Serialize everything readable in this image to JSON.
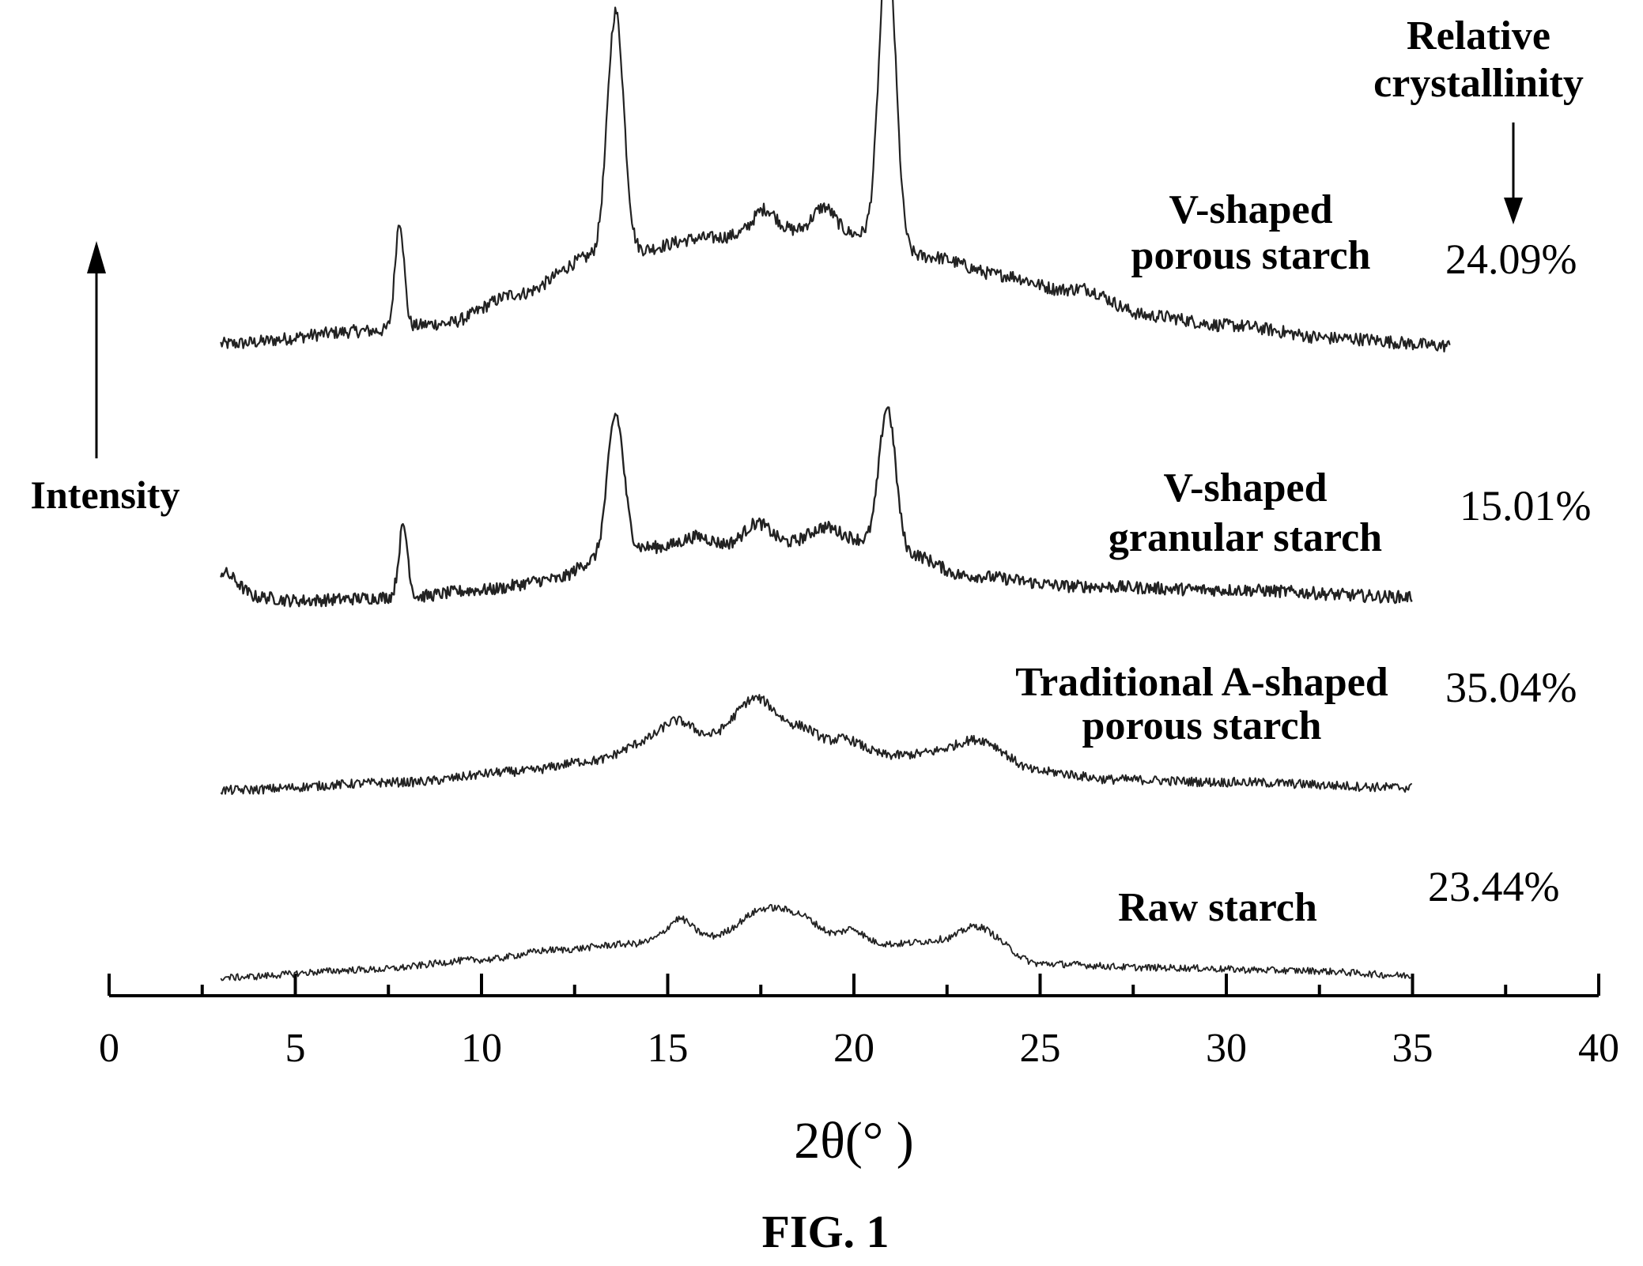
{
  "figure_label": "FIG. 1",
  "y_axis_label": "Intensity",
  "crystallinity_header": [
    "Relative",
    "crystallinity"
  ],
  "chart_data": {
    "type": "line",
    "title": "",
    "xlabel": "2θ(°  )",
    "ylabel": "Intensity",
    "xlim": [
      0,
      40
    ],
    "x_ticks": [
      0,
      5,
      10,
      15,
      20,
      25,
      30,
      35,
      40
    ],
    "x_tick_labels": [
      "0",
      "5",
      "10",
      "15",
      "20",
      "25",
      "30",
      "35",
      "40"
    ],
    "x_minor_ticks": [
      2.5,
      7.5,
      12.5,
      17.5,
      22.5,
      27.5,
      32.5,
      37.5
    ],
    "grid": false,
    "series": [
      {
        "name": "V-shaped porous starch",
        "label_lines": [
          "V-shaped",
          "porous starch"
        ],
        "relative_crystallinity": "24.09%",
        "x_range": [
          3,
          36
        ],
        "baseline": [
          [
            3,
            0.05
          ],
          [
            7,
            0.12
          ],
          [
            9,
            0.16
          ],
          [
            11,
            0.32
          ],
          [
            13,
            0.52
          ],
          [
            14,
            0.55
          ],
          [
            16,
            0.62
          ],
          [
            18,
            0.66
          ],
          [
            20,
            0.64
          ],
          [
            22,
            0.52
          ],
          [
            24,
            0.42
          ],
          [
            26,
            0.3
          ],
          [
            28,
            0.2
          ],
          [
            30,
            0.15
          ],
          [
            33,
            0.08
          ],
          [
            36,
            0.04
          ]
        ],
        "peaks": [
          [
            7.8,
            0.58,
            0.12
          ],
          [
            13.6,
            1.3,
            0.22
          ],
          [
            17.6,
            0.12,
            0.3
          ],
          [
            19.2,
            0.14,
            0.3
          ],
          [
            20.9,
            1.65,
            0.22
          ],
          [
            26.2,
            0.05,
            0.6
          ]
        ]
      },
      {
        "name": "V-shaped granular starch",
        "label_lines": [
          "V-shaped",
          "granular starch"
        ],
        "relative_crystallinity": "15.01%",
        "x_range": [
          3,
          35
        ],
        "baseline": [
          [
            3,
            0.16
          ],
          [
            4,
            0.02
          ],
          [
            5,
            0.0
          ],
          [
            8,
            0.02
          ],
          [
            10,
            0.06
          ],
          [
            12,
            0.12
          ],
          [
            13,
            0.22
          ],
          [
            14.5,
            0.3
          ],
          [
            16,
            0.3
          ],
          [
            18,
            0.32
          ],
          [
            20,
            0.34
          ],
          [
            21.5,
            0.26
          ],
          [
            23,
            0.14
          ],
          [
            26,
            0.08
          ],
          [
            30,
            0.06
          ],
          [
            35,
            0.02
          ]
        ],
        "peaks": [
          [
            7.9,
            0.4,
            0.12
          ],
          [
            13.6,
            0.8,
            0.22
          ],
          [
            15.8,
            0.06,
            0.4
          ],
          [
            17.4,
            0.12,
            0.35
          ],
          [
            19.2,
            0.08,
            0.4
          ],
          [
            20.9,
            0.8,
            0.22
          ]
        ]
      },
      {
        "name": "Traditional A-shaped porous starch",
        "label_lines": [
          "Traditional A-shaped",
          "porous starch"
        ],
        "relative_crystallinity": "35.04%",
        "x_range": [
          3,
          35
        ],
        "baseline": [
          [
            3,
            0.0
          ],
          [
            8,
            0.06
          ],
          [
            11,
            0.14
          ],
          [
            13,
            0.22
          ],
          [
            14.5,
            0.36
          ],
          [
            16,
            0.4
          ],
          [
            17.5,
            0.55
          ],
          [
            18.5,
            0.48
          ],
          [
            19.5,
            0.34
          ],
          [
            21,
            0.26
          ],
          [
            22.5,
            0.28
          ],
          [
            23.5,
            0.3
          ],
          [
            25,
            0.14
          ],
          [
            27,
            0.08
          ],
          [
            30,
            0.06
          ],
          [
            35,
            0.02
          ]
        ],
        "peaks": [
          [
            15.2,
            0.14,
            0.4
          ],
          [
            17.3,
            0.14,
            0.45
          ],
          [
            19.8,
            0.05,
            0.4
          ],
          [
            23.2,
            0.08,
            0.55
          ]
        ]
      },
      {
        "name": "Raw starch",
        "label_lines": [
          "Raw starch"
        ],
        "relative_crystallinity": "23.44%",
        "x_range": [
          3,
          35
        ],
        "baseline": [
          [
            3,
            0.0
          ],
          [
            7,
            0.08
          ],
          [
            10,
            0.18
          ],
          [
            12,
            0.28
          ],
          [
            14,
            0.34
          ],
          [
            15.5,
            0.46
          ],
          [
            16.2,
            0.42
          ],
          [
            17.5,
            0.62
          ],
          [
            18.5,
            0.58
          ],
          [
            19.5,
            0.44
          ],
          [
            21,
            0.34
          ],
          [
            22.5,
            0.38
          ],
          [
            23.3,
            0.46
          ],
          [
            25,
            0.14
          ],
          [
            28,
            0.1
          ],
          [
            32,
            0.07
          ],
          [
            35,
            0.02
          ]
        ],
        "peaks": [
          [
            15.3,
            0.14,
            0.28
          ],
          [
            18.0,
            0.1,
            0.6
          ],
          [
            20.0,
            0.08,
            0.22
          ],
          [
            23.2,
            0.06,
            0.45
          ]
        ]
      }
    ]
  }
}
